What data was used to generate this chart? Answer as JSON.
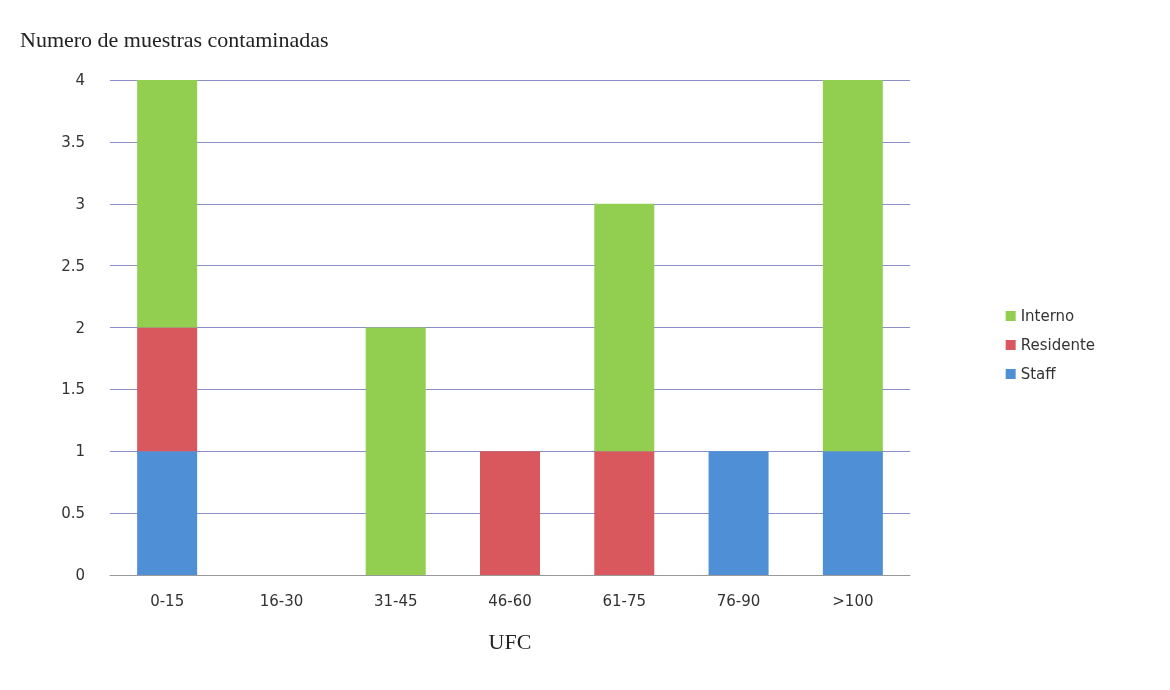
{
  "chart_data": {
    "type": "bar",
    "stacked": true,
    "ylabel": "Numero de muestras contaminadas",
    "xlabel": "UFC",
    "categories": [
      "0-15",
      "16-30",
      "31-45",
      "46-60",
      "61-75",
      "76-90",
      ">100"
    ],
    "series": [
      {
        "name": "Staff",
        "color": "#4f8fd6",
        "values": [
          1,
          0,
          0,
          0,
          0,
          1,
          1
        ]
      },
      {
        "name": "Residente",
        "color": "#d9585e",
        "values": [
          1,
          0,
          0,
          1,
          1,
          0,
          0
        ]
      },
      {
        "name": "Interno",
        "color": "#92cf50",
        "values": [
          2,
          0,
          2,
          0,
          2,
          0,
          3
        ]
      }
    ],
    "ylim": [
      0,
      4
    ],
    "yticks": [
      0,
      0.5,
      1,
      1.5,
      2,
      2.5,
      3,
      3.5,
      4
    ],
    "grid": "y",
    "legend": "right"
  }
}
